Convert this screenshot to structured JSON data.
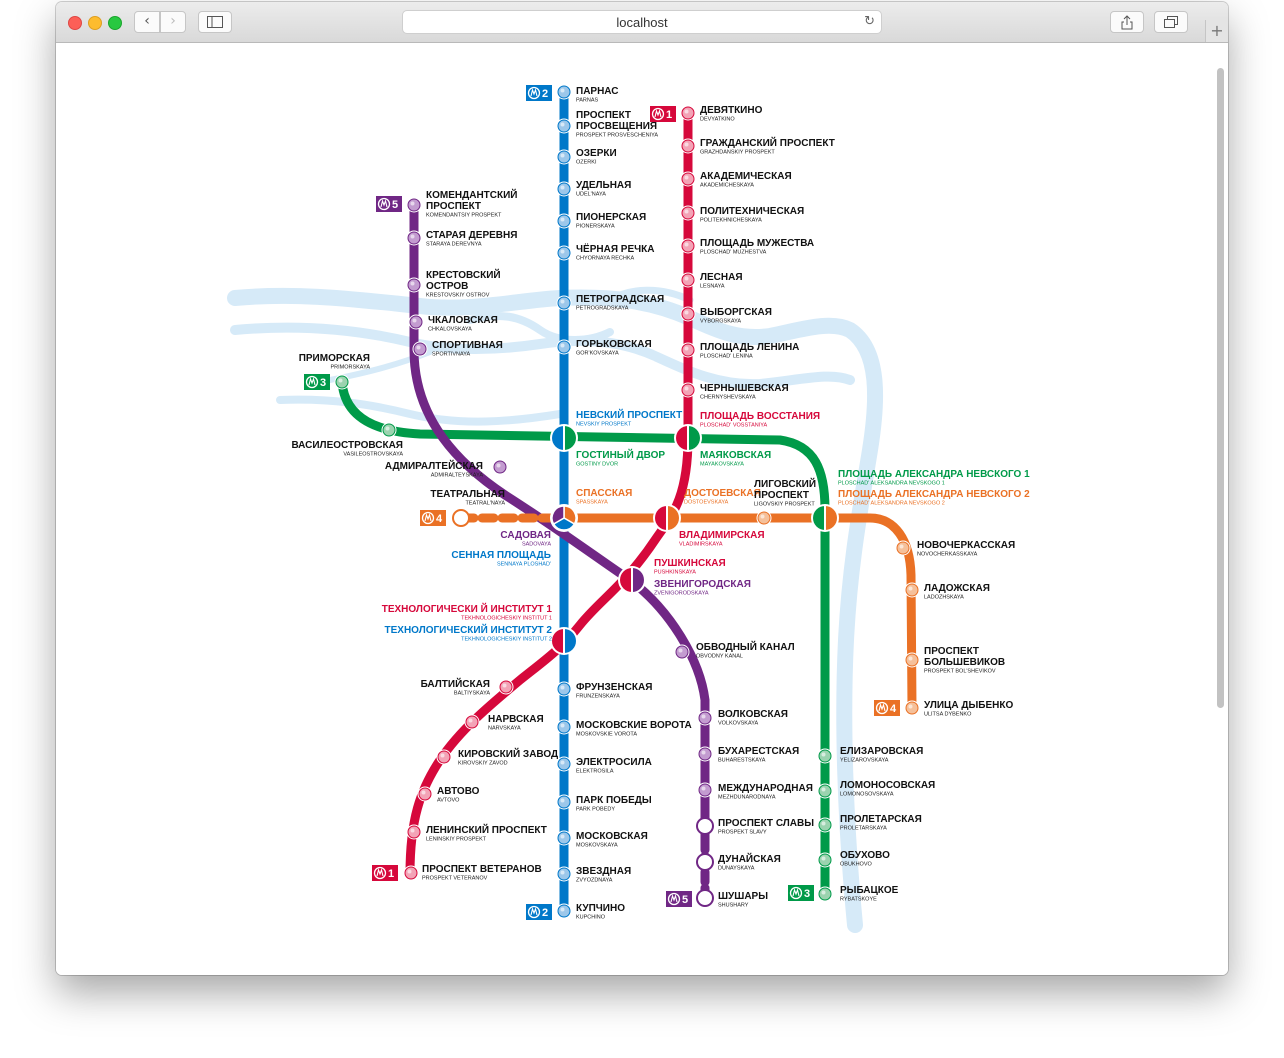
{
  "browser": {
    "address": "localhost",
    "reload_icon": "reload-icon",
    "back_icon": "chevron-left-icon",
    "forward_icon": "chevron-right-icon",
    "sidebar_icon": "sidebar-icon",
    "share_icon": "share-icon",
    "tabs_icon": "tabs-icon",
    "newtab_icon": "plus-icon"
  },
  "lines": {
    "1": {
      "color": "#d6083b",
      "badge": "1"
    },
    "2": {
      "color": "#0078c9",
      "badge": "2"
    },
    "3": {
      "color": "#009a49",
      "badge": "3"
    },
    "4": {
      "color": "#ea7125",
      "badge": "4"
    },
    "5": {
      "color": "#702785",
      "badge": "5"
    }
  },
  "stations": [
    {
      "ru": "ПАРНАС",
      "lat": "PARNAS"
    },
    {
      "ru": "ПРОСПЕКТ ПРОСВЕЩЕНИЯ",
      "lat": "PROSPEKT PROSVESCHENIYA"
    },
    {
      "ru": "ОЗЕРКИ",
      "lat": "OZERKI"
    },
    {
      "ru": "УДЕЛЬНАЯ",
      "lat": "UDEL'NAYA"
    },
    {
      "ru": "ПИОНЕРСКАЯ",
      "lat": "PIONERSKAYA"
    },
    {
      "ru": "ЧЁРНАЯ РЕЧКА",
      "lat": "CHYORNAYA RECHKA"
    },
    {
      "ru": "ПЕТРОГРАДСКАЯ",
      "lat": "PETROGRADSKAYA"
    },
    {
      "ru": "ГОРЬКОВСКАЯ",
      "lat": "GOR'KOVSKAYA"
    },
    {
      "ru": "НЕВСКИЙ ПРОСПЕКТ",
      "lat": "NEVSKIY PROSPEKT"
    },
    {
      "ru": "СЕННАЯ ПЛОЩАДЬ",
      "lat": "SENNAYA PLOSHAD'"
    },
    {
      "ru": "ТЕХНОЛОГИЧЕСКИЙ ИНСТИТУТ 2",
      "lat": "TEKHNOLOGICHESKIY INSTITUT 2"
    },
    {
      "ru": "ФРУНЗЕНСКАЯ",
      "lat": "FRUNZENSKAYA"
    },
    {
      "ru": "МОСКОВСКИЕ ВОРОТА",
      "lat": "MOSKOVSKIE VOROTA"
    },
    {
      "ru": "ЭЛЕКТРОСИЛА",
      "lat": "ELEKTROSILA"
    },
    {
      "ru": "ПАРК ПОБЕДЫ",
      "lat": "PARK POBEDY"
    },
    {
      "ru": "МОСКОВСКАЯ",
      "lat": "MOSKOVSKAYA"
    },
    {
      "ru": "ЗВЕЗДНАЯ",
      "lat": "ZVYOZDNAYA"
    },
    {
      "ru": "КУПЧИНО",
      "lat": "KUPCHINO"
    },
    {
      "ru": "ДЕВЯТКИНО",
      "lat": "DEVYATKINO"
    },
    {
      "ru": "ГРАЖДАНСКИЙ ПРОСПЕКТ",
      "lat": "GRAZHDANSKIY PROSPEKT"
    },
    {
      "ru": "АКАДЕМИЧЕСКАЯ",
      "lat": "AKADEMICHESKAYA"
    },
    {
      "ru": "ПОЛИТЕХНИЧЕСКАЯ",
      "lat": "POLITEKHNICHESKAYA"
    },
    {
      "ru": "ПЛОЩАДЬ МУЖЕСТВА",
      "lat": "PLOSCHAD' MUZHESTVA"
    },
    {
      "ru": "ЛЕСНАЯ",
      "lat": "LESNAYA"
    },
    {
      "ru": "ВЫБОРГСКАЯ",
      "lat": "VYBORGSKAYA"
    },
    {
      "ru": "ПЛОЩАДЬ ЛЕНИНА",
      "lat": "PLOSCHAD' LENINA"
    },
    {
      "ru": "ЧЕРНЫШЕВСКАЯ",
      "lat": "CHERNYSHEVSKAYA"
    },
    {
      "ru": "ПЛОЩАДЬ ВОССТАНИЯ",
      "lat": "PLOSCHAD' VOSSTANIYA"
    },
    {
      "ru": "ВЛАДИМИРСКАЯ",
      "lat": "VLADIMIRSKAYA"
    },
    {
      "ru": "ПУШКИНСКАЯ",
      "lat": "PUSHKINSKAYA"
    },
    {
      "ru": "ТЕХНОЛОГИЧЕСКИ Й ИНСТИТУТ 1",
      "lat": "TEKHNOLOGICHESKIY INSTITUT 1"
    },
    {
      "ru": "БАЛТИЙСКАЯ",
      "lat": "BALTIYSKAYA"
    },
    {
      "ru": "НАРВСКАЯ",
      "lat": "NARVSKAYA"
    },
    {
      "ru": "КИРОВСКИЙ ЗАВОД",
      "lat": "KIROVSKIY ZAVOD"
    },
    {
      "ru": "АВТОВО",
      "lat": "AVTOVO"
    },
    {
      "ru": "ЛЕНИНСКИЙ ПРОСПЕКТ",
      "lat": "LENINSKIY PROSPEKT"
    },
    {
      "ru": "ПРОСПЕКТ ВЕТЕРАНОВ",
      "lat": "PROSPEKT VETERANOV"
    },
    {
      "ru": "ПРИМОРСКАЯ",
      "lat": "PRIMORSKAYA"
    },
    {
      "ru": "ВАСИЛЕОСТРОВСКАЯ",
      "lat": "VASILEOSTROVSKAYA"
    },
    {
      "ru": "ГОСТИНЫЙ ДВОР",
      "lat": "GOSTINY DVOR"
    },
    {
      "ru": "МАЯКОВСКАЯ",
      "lat": "MAYAKOVSKAYA"
    },
    {
      "ru": "ПЛОЩАДЬ АЛЕКСАНДРА НЕВСКОГО 1",
      "lat": "PLOSCHAD' ALEKSANDRA NEVSKOGO 1"
    },
    {
      "ru": "ЕЛИЗАРОВСКАЯ",
      "lat": "YELIZAROVSKAYA"
    },
    {
      "ru": "ЛОМОНОСОВСКАЯ",
      "lat": "LOMONOSOVSKAYA"
    },
    {
      "ru": "ПРОЛЕТАРСКАЯ",
      "lat": "PROLETARSKAYA"
    },
    {
      "ru": "ОБУХОВО",
      "lat": "OBUKHOVO"
    },
    {
      "ru": "РЫБАЦКОЕ",
      "lat": "RYBATSKOYE"
    },
    {
      "ru": "ТЕАТРАЛЬНАЯ",
      "lat": "TEATRAL'NAYA"
    },
    {
      "ru": "СПАССКАЯ",
      "lat": "SPASSKAYA"
    },
    {
      "ru": "ДОСТОЕВСКАЯ",
      "lat": "DOSTOEVSKAYA"
    },
    {
      "ru": "ЛИГОВСКИЙ ПРОСПЕКТ",
      "lat": "LIGOVSKIY PROSPEKT"
    },
    {
      "ru": "ПЛОЩАДЬ АЛЕКСАНДРА НЕВСКОГО 2",
      "lat": "PLOSCHAD' ALEKSANDRA NEVSKOGO 2"
    },
    {
      "ru": "НОВОЧЕРКАССКАЯ",
      "lat": "NOVOCHERKASSKAYA"
    },
    {
      "ru": "ЛАДОЖСКАЯ",
      "lat": "LADOZHSKAYA"
    },
    {
      "ru": "ПРОСПЕКТ БОЛЬШЕВИКОВ",
      "lat": "PROSPEKT BOL'SHEVIKOV"
    },
    {
      "ru": "УЛИЦА ДЫБЕНКО",
      "lat": "ULITSA DYBENKO"
    },
    {
      "ru": "КОМЕНДАНТСКИЙ ПРОСПЕКТ",
      "lat": "KOMENDANTSIY PROSPEKT"
    },
    {
      "ru": "СТАРАЯ ДЕРЕВНЯ",
      "lat": "STARAYA DEREVNYA"
    },
    {
      "ru": "КРЕСТОВСКИЙ ОСТРОВ",
      "lat": "KRESTOVSKIY OSTROV"
    },
    {
      "ru": "ЧКАЛОВСКАЯ",
      "lat": "CHKALOVSKAYA"
    },
    {
      "ru": "СПОРТИВНАЯ",
      "lat": "SPORTIVNAYA"
    },
    {
      "ru": "АДМИРАЛТЕЙСКАЯ",
      "lat": "ADMIRALTEYSKAYA"
    },
    {
      "ru": "САДОВАЯ",
      "lat": "SADOVAYA"
    },
    {
      "ru": "ЗВЕНИГОРОДСКАЯ",
      "lat": "ZVENIGORODSKAYA"
    },
    {
      "ru": "ОБВОДНЫЙ КАНАЛ",
      "lat": "OBVODNY KANAL"
    },
    {
      "ru": "ВОЛКОВСКАЯ",
      "lat": "VOLKOVSKAYA"
    },
    {
      "ru": "БУХАРЕСТСКАЯ",
      "lat": "BUHARESTSKAYA"
    },
    {
      "ru": "МЕЖДУНАРОДНАЯ",
      "lat": "MEZHDUNARODNAYA"
    },
    {
      "ru": "ПРОСПЕКТ СЛАВЫ",
      "lat": "PROSPEKT SLAVY"
    },
    {
      "ru": "ДУНАЙСКАЯ",
      "lat": "DUNAYSKAYA"
    },
    {
      "ru": "ШУШАРЫ",
      "lat": "SHUSHARY"
    }
  ]
}
